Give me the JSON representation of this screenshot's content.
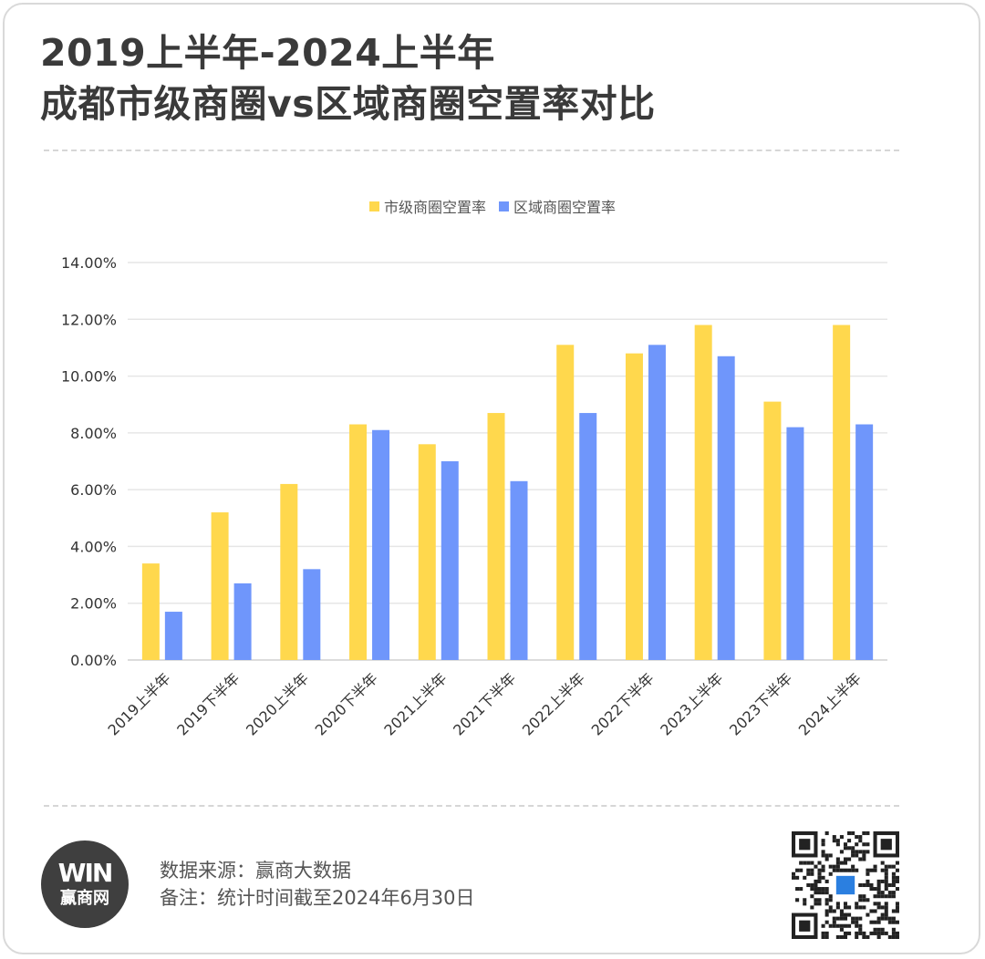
{
  "header": {
    "title_line1": "2019上半年-2024上半年",
    "title_line2": "成都市级商圈vs区域商圈空置率对比"
  },
  "colors": {
    "series1": "#ffd84d",
    "series2": "#6f96fb",
    "grid": "#e6e6e6",
    "axis_text": "#333333"
  },
  "chart_data": {
    "type": "bar",
    "categories": [
      "2019上半年",
      "2019下半年",
      "2020上半年",
      "2020下半年",
      "2021上半年",
      "2021下半年",
      "2022上半年",
      "2022下半年",
      "2023上半年",
      "2023下半年",
      "2024上半年"
    ],
    "series": [
      {
        "name": "市级商圈空置率",
        "values": [
          3.4,
          5.2,
          6.2,
          8.3,
          7.6,
          8.7,
          11.1,
          10.8,
          11.8,
          9.1,
          11.8
        ]
      },
      {
        "name": "区域商圈空置率",
        "values": [
          1.7,
          2.7,
          3.2,
          8.1,
          7.0,
          6.3,
          8.7,
          11.1,
          10.7,
          8.2,
          8.3
        ]
      }
    ],
    "y_ticks": [
      "0.00%",
      "2.00%",
      "4.00%",
      "6.00%",
      "8.00%",
      "10.00%",
      "12.00%",
      "14.00%"
    ],
    "ylim": [
      0,
      14
    ],
    "grid": true,
    "legend": "top-center"
  },
  "footer": {
    "logo_mark": "WIN",
    "logo_name": "赢商网",
    "source": "数据来源：赢商大数据",
    "note": "备注：统计时间截至2024年6月30日"
  }
}
